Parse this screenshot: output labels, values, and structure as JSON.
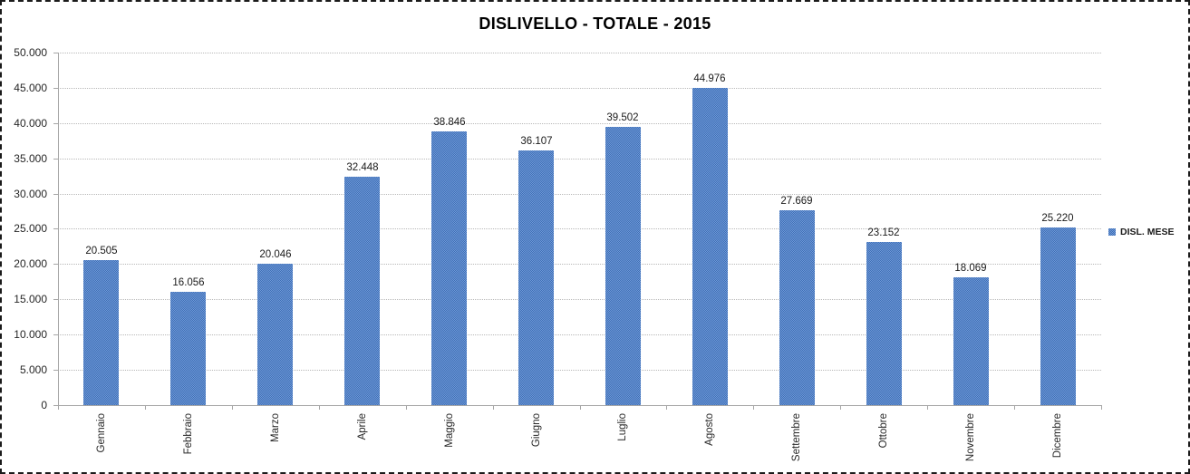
{
  "chart_data": {
    "type": "bar",
    "title": "DISLIVELLO - TOTALE - 2015",
    "categories": [
      "Gennaio",
      "Febbraio",
      "Marzo",
      "Aprile",
      "Maggio",
      "Giugno",
      "Luglio",
      "Agosto",
      "Settembre",
      "Ottobre",
      "Novembre",
      "Dicembre"
    ],
    "values": [
      20505,
      16056,
      20046,
      32448,
      38846,
      36107,
      39502,
      44976,
      27669,
      23152,
      18069,
      25220
    ],
    "value_labels": [
      "20.505",
      "16.056",
      "20.046",
      "32.448",
      "38.846",
      "36.107",
      "39.502",
      "44.976",
      "27.669",
      "23.152",
      "18.069",
      "25.220"
    ],
    "series_name": "DISL. MESE",
    "xlabel": "",
    "ylabel": "",
    "ylim": [
      0,
      50000
    ],
    "y_tick_step": 5000,
    "y_tick_labels": [
      "0",
      "5.000",
      "10.000",
      "15.000",
      "20.000",
      "25.000",
      "30.000",
      "35.000",
      "40.000",
      "45.000",
      "50.000"
    ],
    "grid": true,
    "legend_position": "right",
    "colors": {
      "bar_dark": "#3e6fb7",
      "bar_light": "#7099d6",
      "gridline": "#b8b8b8",
      "axis": "#a6a6a6",
      "text": "#262626",
      "title": "#000000"
    }
  }
}
